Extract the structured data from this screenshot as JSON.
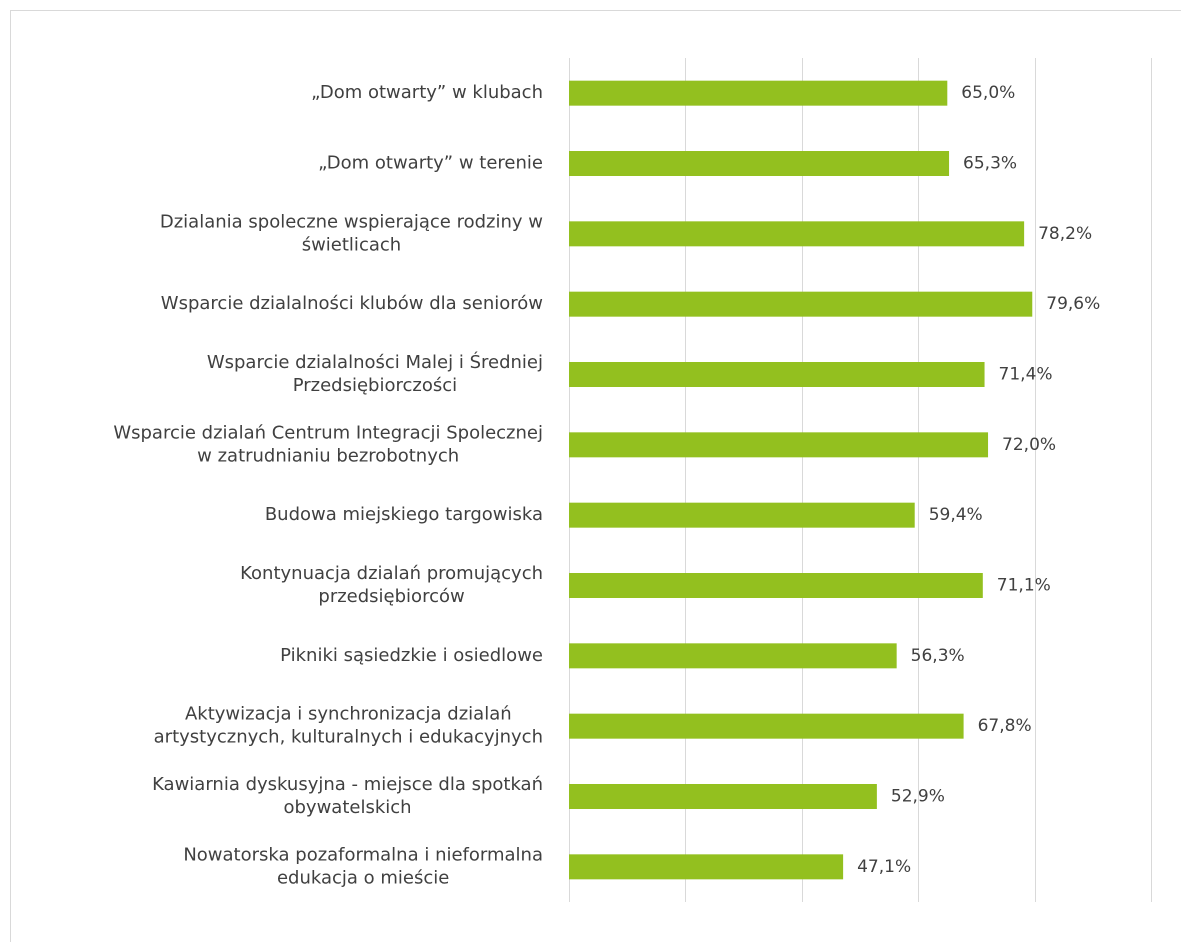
{
  "chart_data": {
    "type": "bar",
    "orientation": "horizontal",
    "categories": [
      [
        "„Dom otwarty” w klubach"
      ],
      [
        "„Dom otwarty” w terenie"
      ],
      [
        "Dzialania spoleczne wspierające rodziny w",
        "świetlicach"
      ],
      [
        "Wsparcie dzialalności klubów dla seniorów"
      ],
      [
        "Wsparcie dzialalności Malej i Średniej",
        "Przedsiębiorczości"
      ],
      [
        "Wsparcie dzialań Centrum Integracji Spolecznej",
        "w zatrudnianiu bezrobotnych"
      ],
      [
        "Budowa miejskiego targowiska"
      ],
      [
        "Kontynuacja dzialań promujących",
        "przedsiębiorców"
      ],
      [
        "Pikniki sąsiedzkie i osiedlowe"
      ],
      [
        "Aktywizacja i synchronizacja  dzialań",
        "artystycznych, kulturalnych i edukacyjnych"
      ],
      [
        "Kawiarnia dyskusyjna - miejsce dla spotkań",
        "obywatelskich"
      ],
      [
        "Nowatorska pozaformalna i nieformalna",
        "edukacja o mieście"
      ]
    ],
    "values": [
      65.0,
      65.3,
      78.2,
      79.6,
      71.4,
      72.0,
      59.4,
      71.1,
      56.3,
      67.8,
      52.9,
      47.1
    ],
    "value_labels": [
      "65,0%",
      "65,3%",
      "78,2%",
      "79,6%",
      "71,4%",
      "72,0%",
      "59,4%",
      "71,1%",
      "56,3%",
      "67,8%",
      "52,9%",
      "47,1%"
    ],
    "color": "#93c01f",
    "xlim": [
      0,
      100
    ],
    "xticks": [
      0,
      20,
      40,
      60,
      80,
      100
    ],
    "grid": true
  }
}
